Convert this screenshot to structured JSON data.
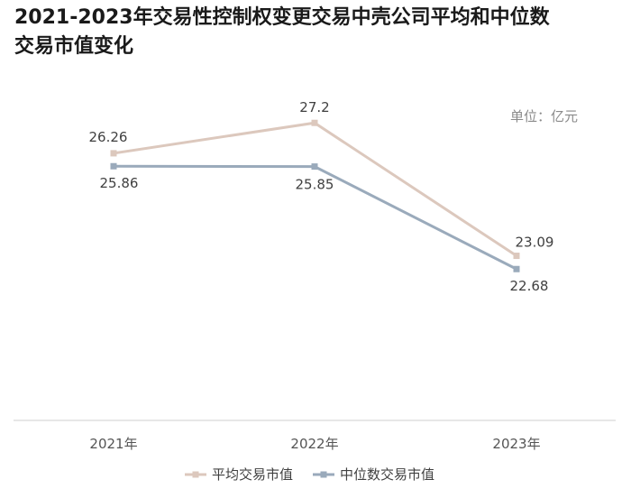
{
  "title": "2021-2023年交易性控制权变更交易中壳公司平均和中位数交易市值变化",
  "unit_label": "单位：亿元",
  "colors": {
    "avg": "#dcc8bd",
    "median": "#9aaabb",
    "axis": "#cfcfcf"
  },
  "chart_data": {
    "type": "line",
    "title": "2021-2023年交易性控制权变更交易中壳公司平均和中位数交易市值变化",
    "ylabel": "单位：亿元",
    "xlabel": "",
    "categories": [
      "2021年",
      "2022年",
      "2023年"
    ],
    "ylim": [
      18,
      31
    ],
    "grid": false,
    "legend_position": "bottom",
    "series": [
      {
        "name": "平均交易市值",
        "values": [
          26.26,
          27.2,
          23.09
        ],
        "labels": [
          "26.26",
          "27.2",
          "23.09"
        ]
      },
      {
        "name": "中位数交易市值",
        "values": [
          25.86,
          25.85,
          22.68
        ],
        "labels": [
          "25.86",
          "25.85",
          "22.68"
        ]
      }
    ]
  }
}
